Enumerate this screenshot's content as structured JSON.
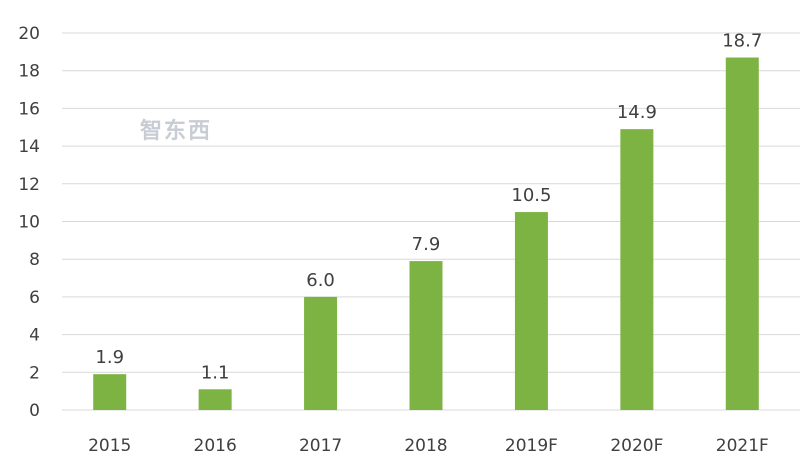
{
  "chart_data": {
    "type": "bar",
    "title": "",
    "xlabel": "",
    "ylabel": "",
    "categories": [
      "2015",
      "2016",
      "2017",
      "2018",
      "2019F",
      "2020F",
      "2021F"
    ],
    "values": [
      1.9,
      1.1,
      6.0,
      7.9,
      10.5,
      14.9,
      18.7
    ],
    "data_labels": [
      "1.9",
      "1.1",
      "6.0",
      "7.9",
      "10.5",
      "14.9",
      "18.7"
    ],
    "ylim": [
      0,
      20
    ],
    "yticks": [
      0,
      2,
      4,
      6,
      8,
      10,
      12,
      14,
      16,
      18,
      20
    ],
    "grid": true,
    "legend": "none",
    "colors": {
      "bar": "#7db343",
      "grid": "#d9d9d9",
      "text": "#404040"
    }
  },
  "watermark": "智东西"
}
